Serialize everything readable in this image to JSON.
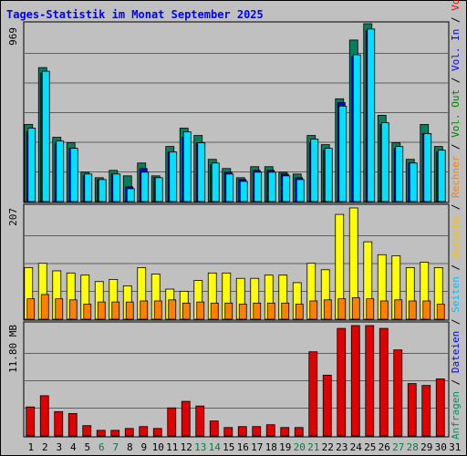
{
  "title": "Tages-Statistik im Monat September 2025",
  "panels": {
    "top_max_label": "969",
    "mid_max_label": "207",
    "bottom_max_label": "11.80 MB"
  },
  "legend": [
    {
      "text": "Anfragen",
      "color": "#009061"
    },
    {
      "text": "/",
      "color": "#000000"
    },
    {
      "text": "Dateien",
      "color": "#0000ff"
    },
    {
      "text": "/",
      "color": "#000000"
    },
    {
      "text": "Seiten",
      "color": "#00c0ff"
    },
    {
      "text": "/",
      "color": "#000000"
    },
    {
      "text": "Besuche",
      "color": "#ffc000"
    },
    {
      "text": "/",
      "color": "#000000"
    },
    {
      "text": "Rechner",
      "color": "#ff8000"
    },
    {
      "text": "/",
      "color": "#000000"
    },
    {
      "text": "Vol. Out",
      "color": "#008000"
    },
    {
      "text": "/",
      "color": "#000000"
    },
    {
      "text": "Vol. In",
      "color": "#0000ff"
    },
    {
      "text": "/",
      "color": "#000000"
    },
    {
      "text": "Volumen",
      "color": "#ff0000"
    }
  ],
  "colors": {
    "background": "#c0c0c0",
    "plot_background": "#c0c0c0",
    "anfragen": "#00805c",
    "dateien": "#0000ff",
    "seiten": "#00e0ff",
    "besuche": "#ffff00",
    "rechner": "#ff8000",
    "volumen": "#e00000",
    "title": "#0000ff",
    "weekend_day": "#008040",
    "weekday": "#000000"
  },
  "chart_data": [
    {
      "type": "bar",
      "name": "Anfragen / Dateien / Seiten",
      "categories": [
        "1",
        "2",
        "3",
        "4",
        "5",
        "6",
        "7",
        "8",
        "9",
        "10",
        "11",
        "12",
        "13",
        "14",
        "15",
        "16",
        "17",
        "18",
        "19",
        "20",
        "21",
        "22",
        "23",
        "24",
        "25",
        "26",
        "27",
        "28",
        "29",
        "30"
      ],
      "weekend_days": [
        "6",
        "7",
        "13",
        "14",
        "20",
        "21",
        "27",
        "28"
      ],
      "ylim": [
        0,
        969
      ],
      "max_label": "969",
      "series": [
        {
          "name": "Anfragen",
          "values": [
            420,
            730,
            350,
            320,
            160,
            130,
            170,
            140,
            210,
            140,
            300,
            400,
            360,
            230,
            180,
            130,
            190,
            190,
            160,
            150,
            360,
            310,
            560,
            880,
            969,
            470,
            320,
            230,
            420,
            300
          ]
        },
        {
          "name": "Dateien",
          "values": [
            380,
            700,
            320,
            290,
            140,
            120,
            150,
            80,
            180,
            130,
            270,
            350,
            320,
            200,
            160,
            120,
            170,
            170,
            150,
            130,
            320,
            280,
            540,
            790,
            930,
            420,
            290,
            210,
            370,
            270
          ]
        },
        {
          "name": "Seiten",
          "values": [
            400,
            710,
            330,
            290,
            150,
            120,
            150,
            70,
            160,
            130,
            270,
            380,
            320,
            210,
            150,
            110,
            160,
            160,
            140,
            120,
            340,
            290,
            520,
            800,
            940,
            430,
            300,
            210,
            370,
            280
          ]
        }
      ]
    },
    {
      "type": "bar",
      "name": "Besuche / Rechner",
      "categories": [
        "1",
        "2",
        "3",
        "4",
        "5",
        "6",
        "7",
        "8",
        "9",
        "10",
        "11",
        "12",
        "13",
        "14",
        "15",
        "16",
        "17",
        "18",
        "19",
        "20",
        "21",
        "22",
        "23",
        "24",
        "25",
        "26",
        "27",
        "28",
        "29",
        "30"
      ],
      "ylim": [
        0,
        207
      ],
      "max_label": "207",
      "series": [
        {
          "name": "Besuche",
          "values": [
            96,
            104,
            90,
            86,
            82,
            70,
            74,
            62,
            96,
            84,
            56,
            52,
            72,
            86,
            86,
            76,
            76,
            82,
            82,
            68,
            104,
            92,
            195,
            207,
            144,
            120,
            118,
            96,
            106,
            96
          ]
        },
        {
          "name": "Rechner",
          "values": [
            38,
            46,
            38,
            36,
            28,
            32,
            32,
            32,
            34,
            34,
            36,
            30,
            32,
            30,
            30,
            28,
            30,
            30,
            30,
            28,
            34,
            36,
            38,
            40,
            38,
            34,
            36,
            34,
            34,
            28
          ]
        }
      ]
    },
    {
      "type": "bar",
      "name": "Volumen",
      "categories": [
        "1",
        "2",
        "3",
        "4",
        "5",
        "6",
        "7",
        "8",
        "9",
        "10",
        "11",
        "12",
        "13",
        "14",
        "15",
        "16",
        "17",
        "18",
        "19",
        "20",
        "21",
        "22",
        "23",
        "24",
        "25",
        "26",
        "27",
        "28",
        "29",
        "30"
      ],
      "ylim": [
        0,
        11.8
      ],
      "max_label": "11.80 MB",
      "unit": "MB",
      "series": [
        {
          "name": "Volumen",
          "values": [
            3.1,
            4.3,
            2.6,
            2.4,
            1.1,
            0.6,
            0.6,
            0.8,
            1.0,
            0.8,
            3.0,
            3.7,
            3.2,
            1.6,
            0.9,
            1.0,
            1.0,
            1.2,
            0.9,
            0.9,
            9.0,
            6.5,
            11.5,
            11.8,
            11.8,
            11.5,
            9.2,
            5.6,
            5.4,
            6.1
          ]
        }
      ]
    }
  ],
  "x_axis": {
    "labels": [
      "1",
      "2",
      "3",
      "4",
      "5",
      "6",
      "7",
      "8",
      "9",
      "10",
      "11",
      "12",
      "13",
      "14",
      "15",
      "16",
      "17",
      "18",
      "19",
      "20",
      "21",
      "22",
      "23",
      "24",
      "25",
      "26",
      "27",
      "28",
      "29",
      "30",
      "31"
    ]
  }
}
